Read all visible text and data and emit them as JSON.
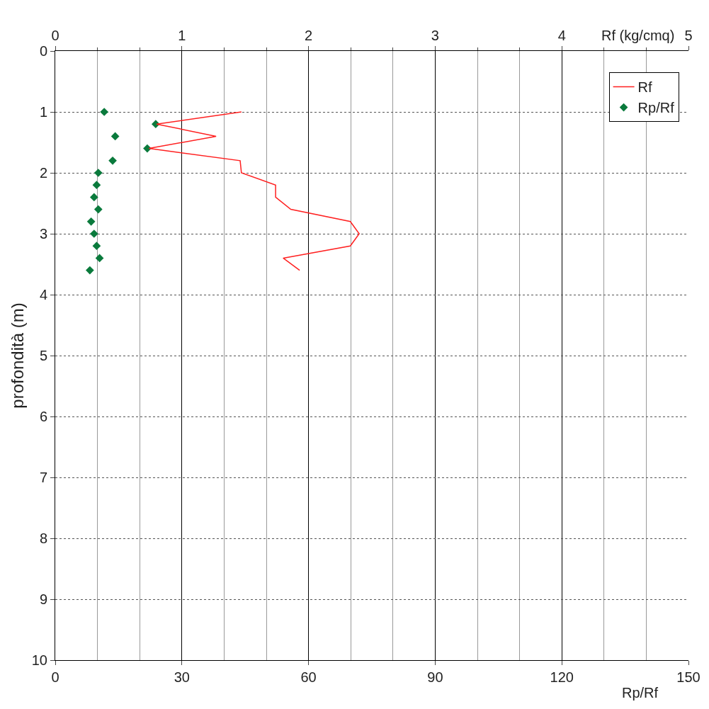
{
  "chart_data": {
    "type": "line",
    "xlabel": "Rp/Rf",
    "x2label": "Rf (kg/cmq)",
    "ylabel": "profondità (m)",
    "xlim": [
      0,
      150
    ],
    "xticks": [
      0,
      30,
      60,
      90,
      120,
      150
    ],
    "x2lim": [
      0,
      5
    ],
    "x2ticks": [
      0,
      1,
      2,
      3,
      4,
      5
    ],
    "ylim": [
      10,
      0
    ],
    "yticks": [
      0,
      1,
      2,
      3,
      4,
      5,
      6,
      7,
      8,
      9,
      10
    ],
    "grid": true,
    "legend": "top right",
    "series": [
      {
        "name": "Rf",
        "axis": "x2",
        "color": "#ff2020",
        "marker": "none",
        "line_style": "solid",
        "x": [
          1.47,
          0.8,
          1.27,
          0.74,
          1.46,
          1.47,
          1.74,
          1.74,
          1.86,
          2.33,
          2.4,
          2.33,
          1.8,
          1.93
        ],
        "values": [
          1.0,
          1.2,
          1.4,
          1.6,
          1.8,
          2.0,
          2.2,
          2.4,
          2.6,
          2.8,
          3.0,
          3.2,
          3.4,
          3.6
        ]
      },
      {
        "name": "Rp/Rf",
        "type": "scatter",
        "color": "#0a7a3c",
        "marker": "diamond",
        "x": [
          11.6,
          23.8,
          14.2,
          21.8,
          13.6,
          10.2,
          9.8,
          9.2,
          10.2,
          8.5,
          9.2,
          9.8,
          10.5,
          8.2
        ],
        "values": [
          1.0,
          1.2,
          1.4,
          1.6,
          1.8,
          2.0,
          2.2,
          2.4,
          2.6,
          2.8,
          3.0,
          3.2,
          3.4,
          3.6
        ]
      }
    ]
  }
}
